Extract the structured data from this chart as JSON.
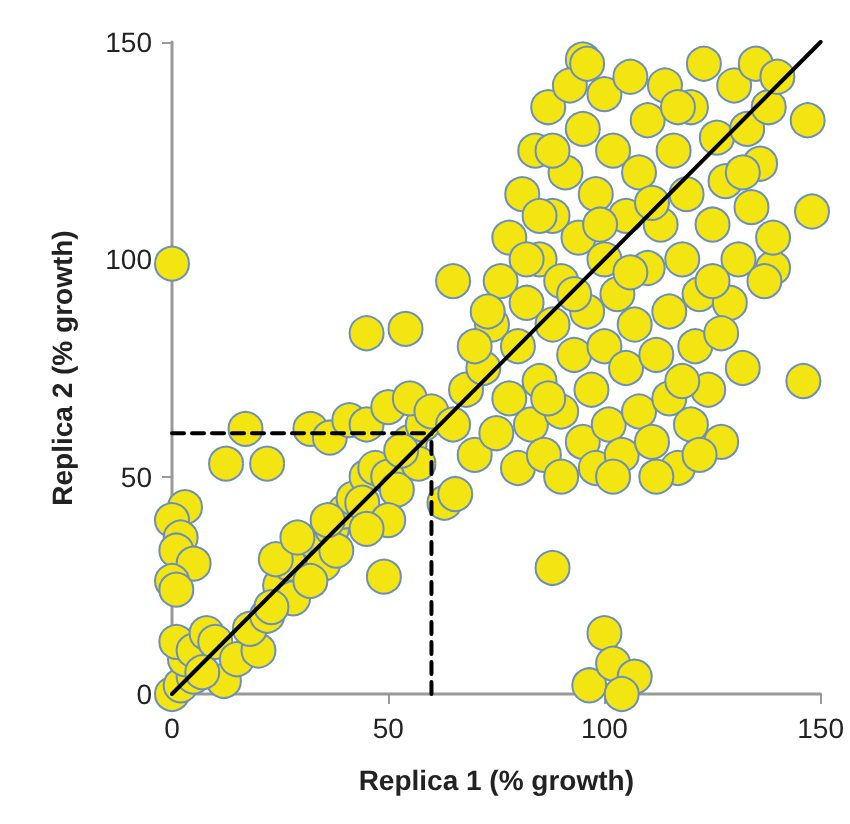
{
  "chart_data": {
    "type": "scatter",
    "xlabel": "Replica 1 (% growth)",
    "ylabel": "Replica 2 (% growth)",
    "xlim": [
      0,
      150
    ],
    "ylim": [
      0,
      150
    ],
    "xticks": [
      0,
      50,
      100,
      150
    ],
    "yticks": [
      0,
      50,
      100,
      150
    ],
    "grid": false,
    "marker": "circle",
    "series": [
      {
        "color": "#f2e512",
        "x": [
          0,
          146,
          88,
          100,
          96.5,
          102,
          107,
          104,
          49,
          63,
          65.5,
          12.5,
          22,
          17,
          32,
          36.5,
          41,
          3,
          0,
          2,
          1,
          5,
          0,
          1,
          0,
          2,
          5,
          3,
          1,
          5,
          8,
          10,
          12,
          15,
          7,
          20,
          18,
          22,
          25,
          28,
          33,
          35,
          37,
          40,
          42,
          45,
          47,
          44,
          50,
          52,
          55,
          57,
          58,
          50,
          53,
          45,
          38,
          27,
          23,
          32,
          24,
          29,
          36,
          45,
          50,
          55,
          60,
          95,
          147,
          148,
          139,
          65,
          45,
          54,
          65,
          68,
          70,
          72,
          74,
          75,
          76,
          78,
          78,
          80,
          80,
          81,
          82,
          83,
          84,
          85,
          85,
          86,
          87,
          88,
          88,
          90,
          90,
          90,
          91,
          92,
          93,
          94,
          95,
          95,
          96,
          97,
          98,
          98,
          100,
          100,
          100,
          101,
          102,
          103,
          104,
          105,
          105,
          106,
          107,
          108,
          108,
          110,
          110,
          111,
          112,
          113,
          114,
          115,
          115,
          116,
          117,
          118,
          119,
          120,
          120,
          121,
          122,
          123,
          124,
          125,
          126,
          127,
          128,
          129,
          130,
          131,
          132,
          133,
          134,
          135,
          136,
          137,
          138,
          139,
          140,
          127,
          118,
          96,
          88,
          82,
          73,
          70,
          102,
          112,
          122,
          93,
          106,
          99,
          85,
          111,
          117,
          125,
          132,
          87
        ],
        "values": [
          99,
          72,
          29,
          14,
          2,
          7,
          4,
          0,
          27,
          44,
          46,
          53,
          53,
          61,
          61,
          59,
          63,
          43,
          40,
          36,
          33,
          30,
          26,
          24,
          0,
          2,
          4,
          8,
          12,
          10,
          14,
          12,
          3,
          8,
          5,
          10,
          15,
          18,
          25,
          22,
          35,
          30,
          38,
          42,
          45,
          50,
          52,
          44,
          50,
          47,
          58,
          53,
          62,
          40,
          56,
          38,
          33,
          30,
          20,
          26,
          31,
          36,
          40,
          62,
          66,
          68,
          65,
          146,
          132,
          111,
          98,
          95,
          83,
          84,
          62,
          70,
          55,
          75,
          85,
          60,
          95,
          68,
          105,
          52,
          80,
          115,
          90,
          62,
          125,
          72,
          100,
          55,
          135,
          85,
          110,
          50,
          65,
          95,
          120,
          140,
          78,
          105,
          58,
          130,
          88,
          70,
          115,
          52,
          100,
          80,
          138,
          62,
          125,
          92,
          55,
          110,
          75,
          142,
          85,
          65,
          120,
          98,
          132,
          58,
          78,
          108,
          140,
          88,
          68,
          125,
          52,
          100,
          115,
          62,
          135,
          80,
          92,
          145,
          70,
          108,
          128,
          58,
          118,
          90,
          140,
          100,
          75,
          130,
          112,
          145,
          122,
          95,
          135,
          105,
          142,
          83,
          72,
          145,
          125,
          100,
          88,
          80,
          50,
          50,
          55,
          92,
          97,
          108,
          110,
          113,
          135,
          95,
          120,
          68
        ]
      },
      {
        "type": "line",
        "color": "#000000",
        "marker": "none",
        "x": [
          0,
          150
        ],
        "values": [
          0,
          150
        ]
      },
      {
        "type": "line",
        "color": "#000000",
        "marker": "none",
        "line_style": "dashed",
        "x": [
          0,
          60
        ],
        "values": [
          60,
          60
        ]
      },
      {
        "type": "line",
        "color": "#000000",
        "marker": "none",
        "line_style": "dashed",
        "x": [
          60,
          60
        ],
        "values": [
          0,
          60
        ]
      }
    ]
  }
}
